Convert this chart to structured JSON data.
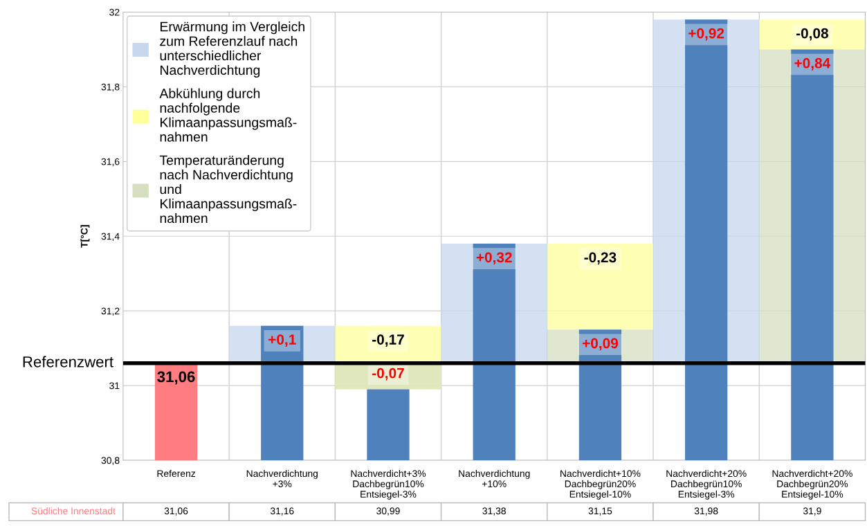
{
  "chart_data": {
    "type": "bar",
    "ylabel": "T[°C]",
    "categories": [
      "Referenz",
      "Nachverdichtung\n+3%",
      "Nachverdicht+3%\nDachbegrün10%\nEntsiegel-3%",
      "Nachverdichtung\n+10%",
      "Nachverdicht+10%\nDachbegrün20%\nEntsiegel-10%",
      "Nachverdicht+20%\nDachbegrün10%\nEntsiegel-3%",
      "Nachverdicht+20%\nDachbegrün20%\nEntsiegel-10%"
    ],
    "series": [
      {
        "name": "Erwärmung im Vergleich\nzum Referenzlauf nach\nunterschiedlicher\nNachverdichtung",
        "color": "#c6d7ee",
        "base": [
          null,
          31.06,
          null,
          31.06,
          null,
          31.06,
          null
        ],
        "values": [
          null,
          0.1,
          null,
          0.32,
          null,
          0.92,
          null
        ],
        "value_labels": [
          null,
          "+0,1",
          null,
          "+0,32",
          null,
          "+0,92",
          null
        ]
      },
      {
        "name": "Abkühlung durch\nnachfolgende\nKlimaanpassungsmaß-\nnahmen",
        "color": "#ffff99",
        "base": [
          null,
          null,
          31.16,
          null,
          31.38,
          null,
          31.98
        ],
        "values": [
          null,
          null,
          -0.17,
          null,
          -0.23,
          null,
          -0.08
        ],
        "value_labels": [
          null,
          null,
          "-0,17",
          null,
          "-0,23",
          null,
          "-0,08"
        ]
      },
      {
        "name": "Temperaturänderung\nnach Nachverdichtung\nund\nKlimaanpassungsmaß-\nnahmen",
        "color": "#d6dfc0",
        "base": [
          null,
          null,
          31.06,
          null,
          31.06,
          null,
          31.06
        ],
        "values": [
          null,
          null,
          -0.07,
          null,
          0.09,
          null,
          0.84
        ],
        "value_labels": [
          null,
          null,
          "-0,07",
          null,
          "+0,09",
          null,
          "+0,84"
        ]
      },
      {
        "name": "Südliche Innenstadt",
        "color": "#4f81bd",
        "colors": [
          "#ff7c80",
          "#4f81bd",
          "#4f81bd",
          "#4f81bd",
          "#4f81bd",
          "#4f81bd",
          "#4f81bd"
        ],
        "values": [
          31.06,
          31.16,
          30.99,
          31.38,
          31.15,
          31.98,
          31.9
        ],
        "value_labels": [
          "31,06",
          "31,16",
          "30,99",
          "31,38",
          "31,15",
          "31,98",
          "31,9"
        ]
      }
    ],
    "ylim": [
      30.8,
      32
    ],
    "yticks": [
      {
        "value": 30.8,
        "label": "30,8"
      },
      {
        "value": 31,
        "label": "31"
      },
      {
        "value": 31.2,
        "label": "31,2"
      },
      {
        "value": 31.4,
        "label": "31,4"
      },
      {
        "value": 31.6,
        "label": "31,6"
      },
      {
        "value": 31.8,
        "label": "31,8"
      },
      {
        "value": 32,
        "label": "32"
      }
    ],
    "ref_lines": [
      {
        "axis": "y",
        "value": 31.06,
        "label": "Referenzwert",
        "color": "#000000"
      }
    ],
    "annotations": [
      {
        "text": "31,06",
        "x": "Referenz",
        "y": 31.06
      }
    ],
    "grid": true,
    "legend": "top left"
  }
}
